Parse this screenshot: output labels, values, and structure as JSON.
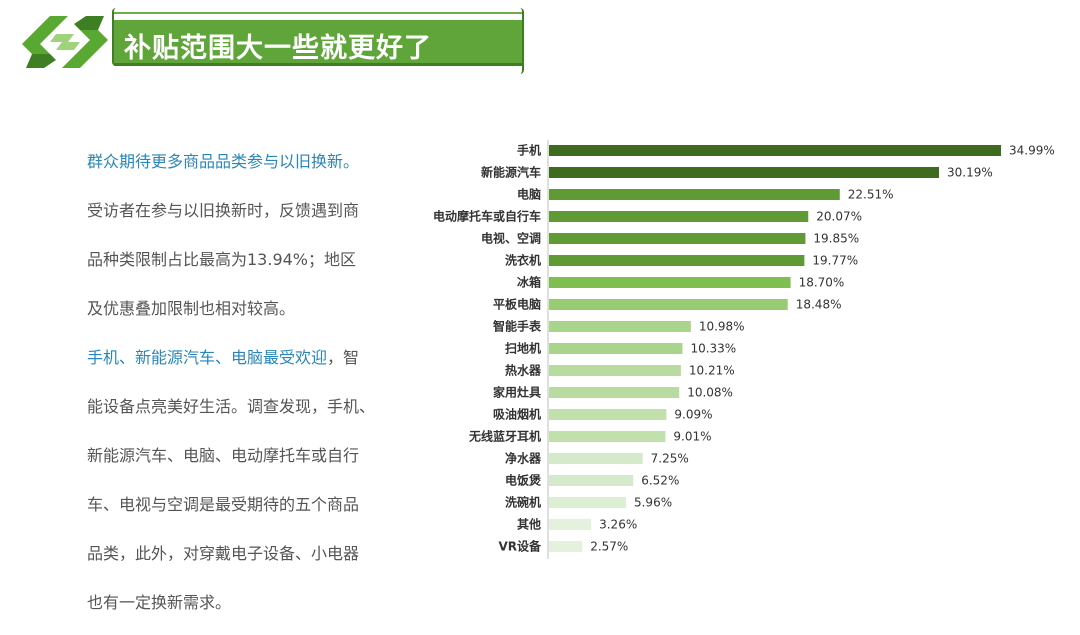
{
  "header": {
    "title": "补贴范围大一些就更好了"
  },
  "text_panel": {
    "lines": [
      {
        "segments": [
          {
            "text": "群众期待更多商品品类参与以旧换新。",
            "highlight": true
          }
        ]
      },
      {
        "segments": [
          {
            "text": "受访者在参与以旧换新时，反馈遇到商",
            "highlight": false
          }
        ]
      },
      {
        "segments": [
          {
            "text": "品种类限制占比最高为13.94%；地区",
            "highlight": false
          }
        ]
      },
      {
        "segments": [
          {
            "text": "及优惠叠加限制也相对较高。",
            "highlight": false
          }
        ]
      },
      {
        "segments": [
          {
            "text": "手机、新能源汽车、电脑最受欢迎",
            "highlight": true
          },
          {
            "text": "，智",
            "highlight": false
          }
        ]
      },
      {
        "segments": [
          {
            "text": "能设备点亮美好生活。调查发现，手机、",
            "highlight": false
          }
        ]
      },
      {
        "segments": [
          {
            "text": "新能源汽车、电脑、电动摩托车或自行",
            "highlight": false
          }
        ]
      },
      {
        "segments": [
          {
            "text": "车、电视与空调是最受期待的五个商品",
            "highlight": false
          }
        ]
      },
      {
        "segments": [
          {
            "text": "品类，此外，对穿戴电子设备、小电器",
            "highlight": false
          }
        ]
      },
      {
        "segments": [
          {
            "text": "也有一定换新需求。",
            "highlight": false
          }
        ]
      }
    ]
  },
  "colors": {
    "accent_text": "#2a86b9",
    "title_bg": "#5fa53a"
  },
  "chart_data": {
    "type": "bar",
    "orientation": "horizontal",
    "categories": [
      "手机",
      "新能源汽车",
      "电脑",
      "电动摩托车或自行车",
      "电视、空调",
      "洗衣机",
      "冰箱",
      "平板电脑",
      "智能手表",
      "扫地机",
      "热水器",
      "家用灶具",
      "吸油烟机",
      "无线蓝牙耳机",
      "净水器",
      "电饭煲",
      "洗碗机",
      "其他",
      "VR设备"
    ],
    "values": [
      34.99,
      30.19,
      22.51,
      20.07,
      19.85,
      19.77,
      18.7,
      18.48,
      10.98,
      10.33,
      10.21,
      10.08,
      9.09,
      9.01,
      7.25,
      6.52,
      5.96,
      3.26,
      2.57
    ],
    "value_labels": [
      "34.99%",
      "30.19%",
      "22.51%",
      "20.07%",
      "19.85%",
      "19.77%",
      "18.70%",
      "18.48%",
      "10.98%",
      "10.33%",
      "10.21%",
      "10.08%",
      "9.09%",
      "9.01%",
      "7.25%",
      "6.52%",
      "5.96%",
      "3.26%",
      "2.57%"
    ],
    "bar_colors": [
      "#3f6b1f",
      "#3f6b1f",
      "#5f9a34",
      "#5f9a34",
      "#5f9a34",
      "#5f9a34",
      "#7fbf4f",
      "#98cc73",
      "#a9d48b",
      "#a9d48b",
      "#b8dba0",
      "#b8dba0",
      "#c2e0ac",
      "#c2e0ac",
      "#d5eacb",
      "#d5eacb",
      "#dcefd3",
      "#e4f2dd",
      "#e4f2dd"
    ],
    "unit": "%",
    "grid": false,
    "legend": "none"
  }
}
